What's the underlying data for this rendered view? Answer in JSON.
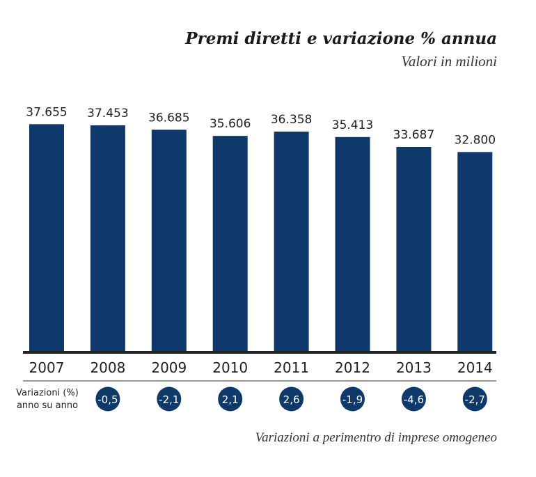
{
  "chart_data": {
    "type": "bar",
    "title": "Premi diretti e variazione % annua",
    "subtitle": "Valori in milioni",
    "categories": [
      "2007",
      "2008",
      "2009",
      "2010",
      "2011",
      "2012",
      "2013",
      "2014"
    ],
    "values": [
      37655,
      37453,
      36685,
      35606,
      36358,
      35413,
      33687,
      32800
    ],
    "value_labels": [
      "37.655",
      "37.453",
      "36.685",
      "35.606",
      "36.358",
      "35.413",
      "33.687",
      "32.800"
    ],
    "variation_label": [
      "Variazioni (%)",
      "anno su anno"
    ],
    "variations": [
      null,
      -0.5,
      -2.1,
      2.1,
      2.6,
      -1.9,
      -4.6,
      -2.7
    ],
    "variation_labels": [
      "",
      "-0,5",
      "-2,1",
      "2,1",
      "2,6",
      "-1,9",
      "-4,6",
      "-2,7"
    ],
    "footnote": "Variazioni a perimentro di imprese omogeneo",
    "ylim": [
      -2000,
      40000
    ],
    "grid": false,
    "bar_color": "#0e3a6b"
  }
}
